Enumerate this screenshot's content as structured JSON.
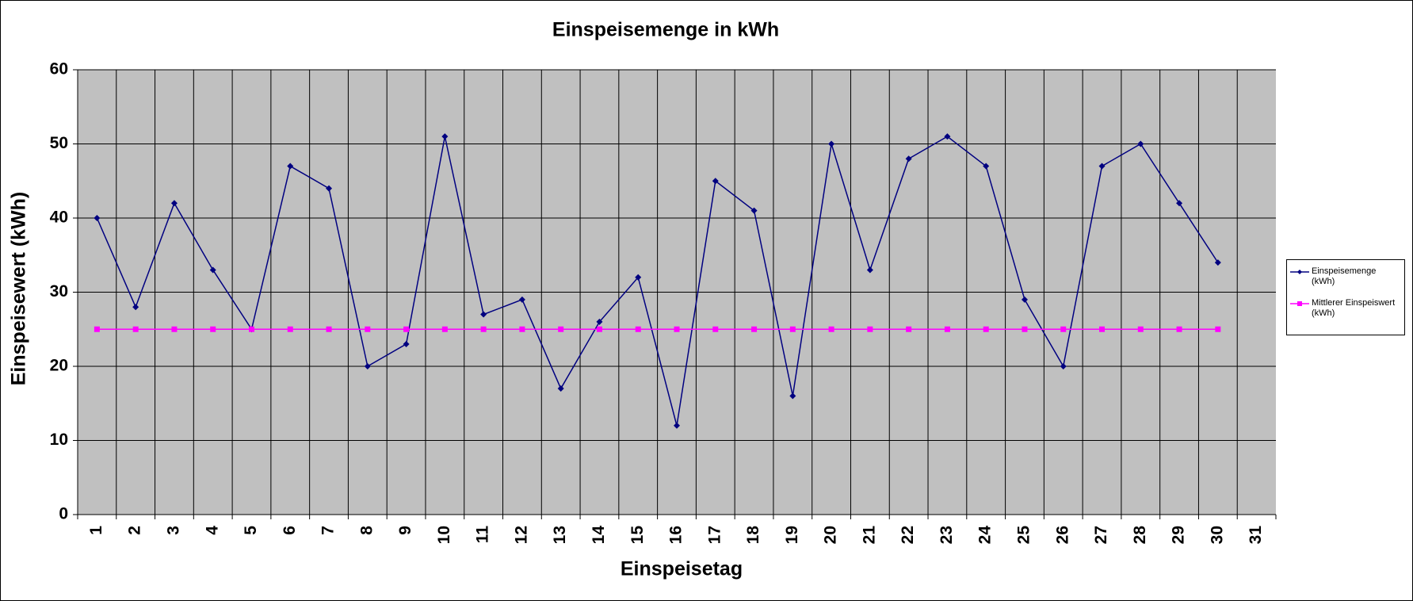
{
  "chart_data": {
    "type": "line",
    "title": "Einspeisemenge in kWh",
    "x_label": "Einspeisetag",
    "y_label": "Einspeisewert  (kWh)",
    "categories": [
      "1",
      "2",
      "3",
      "4",
      "5",
      "6",
      "7",
      "8",
      "9",
      "10",
      "11",
      "12",
      "13",
      "14",
      "15",
      "16",
      "17",
      "18",
      "19",
      "20",
      "21",
      "22",
      "23",
      "24",
      "25",
      "26",
      "27",
      "28",
      "29",
      "30",
      "31"
    ],
    "series": [
      {
        "name": "Einspeisemenge (kWh)",
        "color": "#000080",
        "marker": "diamond",
        "values": [
          40,
          28,
          42,
          33,
          25,
          47,
          44,
          20,
          23,
          51,
          27,
          29,
          17,
          26,
          32,
          12,
          45,
          41,
          16,
          50,
          33,
          48,
          51,
          47,
          29,
          20,
          47,
          50,
          42,
          34,
          null
        ]
      },
      {
        "name": "Mittlerer Einspeiswert (kWh)",
        "color": "#ff00ff",
        "marker": "square",
        "values": [
          25,
          25,
          25,
          25,
          25,
          25,
          25,
          25,
          25,
          25,
          25,
          25,
          25,
          25,
          25,
          25,
          25,
          25,
          25,
          25,
          25,
          25,
          25,
          25,
          25,
          25,
          25,
          25,
          25,
          25,
          null
        ]
      }
    ],
    "ylim": [
      0,
      60
    ],
    "yticks": [
      0,
      10,
      20,
      30,
      40,
      50,
      60
    ],
    "grid": true,
    "plot_background": "#c0c0c0",
    "legend": "right"
  }
}
